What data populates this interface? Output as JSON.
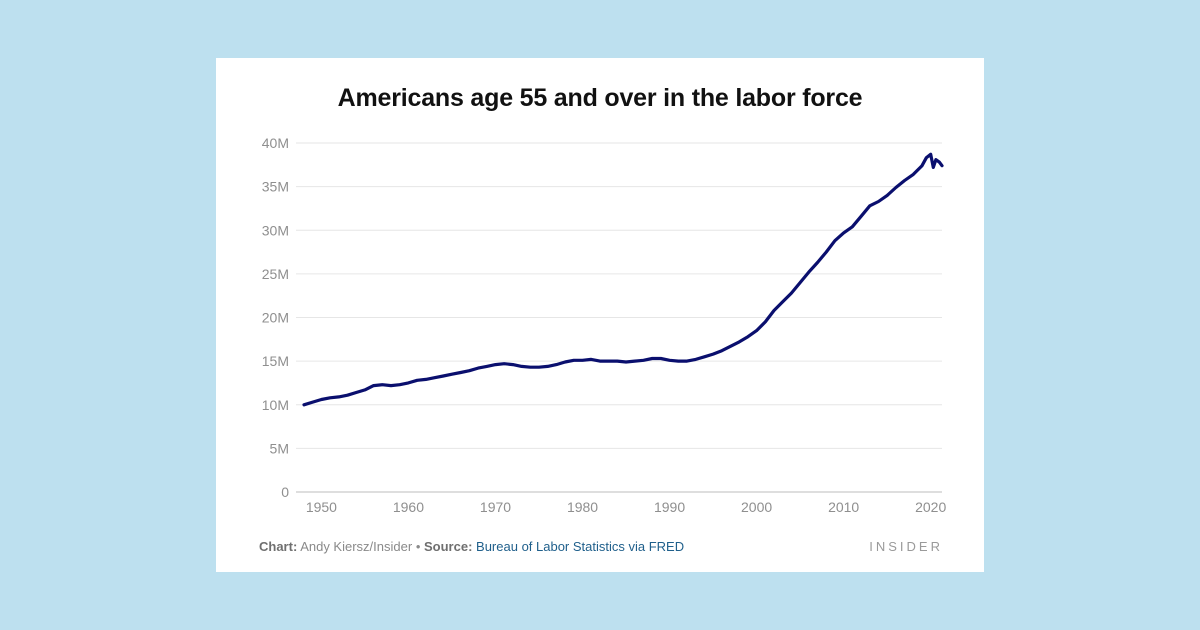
{
  "chart_data": {
    "type": "line",
    "title": "Americans age 55 and over in the labor force",
    "xlabel": "",
    "ylabel": "",
    "xlim": [
      1948,
      2021.3
    ],
    "ylim": [
      0,
      40
    ],
    "x_ticks": [
      1950,
      1960,
      1970,
      1980,
      1990,
      2000,
      2010,
      2020
    ],
    "x_tick_labels": [
      "1950",
      "1960",
      "1970",
      "1980",
      "1990",
      "2000",
      "2010",
      "2020"
    ],
    "y_ticks": [
      0,
      5,
      10,
      15,
      20,
      25,
      30,
      35,
      40
    ],
    "y_tick_labels": [
      "0",
      "5M",
      "10M",
      "15M",
      "20M",
      "25M",
      "30M",
      "35M",
      "40M"
    ],
    "grid": "horizontal",
    "line_color": "#0a0f6e",
    "series": [
      {
        "x": [
          1948,
          1949,
          1950,
          1951,
          1952,
          1953,
          1954,
          1955,
          1956,
          1957,
          1958,
          1959,
          1960,
          1961,
          1962,
          1963,
          1964,
          1965,
          1966,
          1967,
          1968,
          1969,
          1970,
          1971,
          1972,
          1973,
          1974,
          1975,
          1976,
          1977,
          1978,
          1979,
          1980,
          1981,
          1982,
          1983,
          1984,
          1985,
          1986,
          1987,
          1988,
          1989,
          1990,
          1991,
          1992,
          1993,
          1994,
          1995,
          1996,
          1997,
          1998,
          1999,
          2000,
          2001,
          2002,
          2003,
          2004,
          2005,
          2006,
          2007,
          2008,
          2009,
          2010,
          2011,
          2012,
          2013,
          2014,
          2015,
          2016,
          2017,
          2018,
          2019,
          2019.5,
          2020,
          2020.3,
          2020.6,
          2021,
          2021.3
        ],
        "values": [
          10.0,
          10.3,
          10.6,
          10.8,
          10.9,
          11.1,
          11.4,
          11.7,
          12.2,
          12.3,
          12.2,
          12.3,
          12.5,
          12.8,
          12.9,
          13.1,
          13.3,
          13.5,
          13.7,
          13.9,
          14.2,
          14.4,
          14.6,
          14.7,
          14.6,
          14.4,
          14.3,
          14.3,
          14.4,
          14.6,
          14.9,
          15.1,
          15.1,
          15.2,
          15.0,
          15.0,
          15.0,
          14.9,
          15.0,
          15.1,
          15.3,
          15.3,
          15.1,
          15.0,
          15.0,
          15.2,
          15.5,
          15.8,
          16.2,
          16.7,
          17.2,
          17.8,
          18.5,
          19.5,
          20.8,
          21.8,
          22.8,
          24.0,
          25.2,
          26.3,
          27.5,
          28.8,
          29.7,
          30.4,
          31.6,
          32.8,
          33.3,
          34.0,
          34.9,
          35.7,
          36.4,
          37.4,
          38.3,
          38.7,
          37.2,
          38.1,
          37.8,
          37.4
        ]
      }
    ]
  },
  "footer": {
    "chart_label": "Chart:",
    "chart_author": "Andy Kiersz/Insider",
    "bullet": "•",
    "source_label": "Source:",
    "source_link": "Bureau of Labor Statistics via FRED"
  },
  "brand": "INSIDER"
}
